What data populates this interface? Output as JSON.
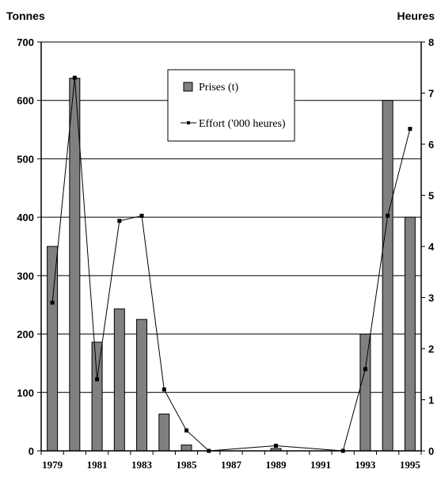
{
  "chart_data": {
    "type": "bar",
    "left_axis_title": "Tonnes",
    "right_axis_title": "Heures",
    "categories": [
      "1979",
      "1980",
      "1981",
      "1982",
      "1983",
      "1984",
      "1985",
      "1986",
      "1987",
      "1988",
      "1989",
      "1990",
      "1991",
      "1992",
      "1993",
      "1994",
      "1995"
    ],
    "x_tick_labels": [
      "1979",
      "1981",
      "1983",
      "1985",
      "1987",
      "1989",
      "1991",
      "1993",
      "1995"
    ],
    "ylim_left": [
      0,
      700
    ],
    "y_ticks_left": [
      "0",
      "100",
      "200",
      "300",
      "400",
      "500",
      "600",
      "700"
    ],
    "ylim_right": [
      0,
      8
    ],
    "y_ticks_right": [
      "0",
      "1",
      "2",
      "3",
      "4",
      "5",
      "6",
      "7",
      "8"
    ],
    "grid": true,
    "legend_position": "top-center",
    "series": [
      {
        "name": "Prises (t)",
        "kind": "bar",
        "axis": "left",
        "color": "#808080",
        "values": [
          350,
          638,
          186,
          243,
          225,
          63,
          10,
          0,
          0,
          0,
          4,
          0,
          0,
          0,
          200,
          600,
          400
        ]
      },
      {
        "name": "Effort ('000 heures)",
        "kind": "line",
        "axis": "right",
        "color": "#000000",
        "values": [
          2.9,
          7.3,
          1.4,
          4.5,
          4.6,
          1.2,
          0.4,
          0.0,
          null,
          null,
          0.1,
          null,
          null,
          0.0,
          1.6,
          4.6,
          6.3
        ]
      }
    ]
  }
}
